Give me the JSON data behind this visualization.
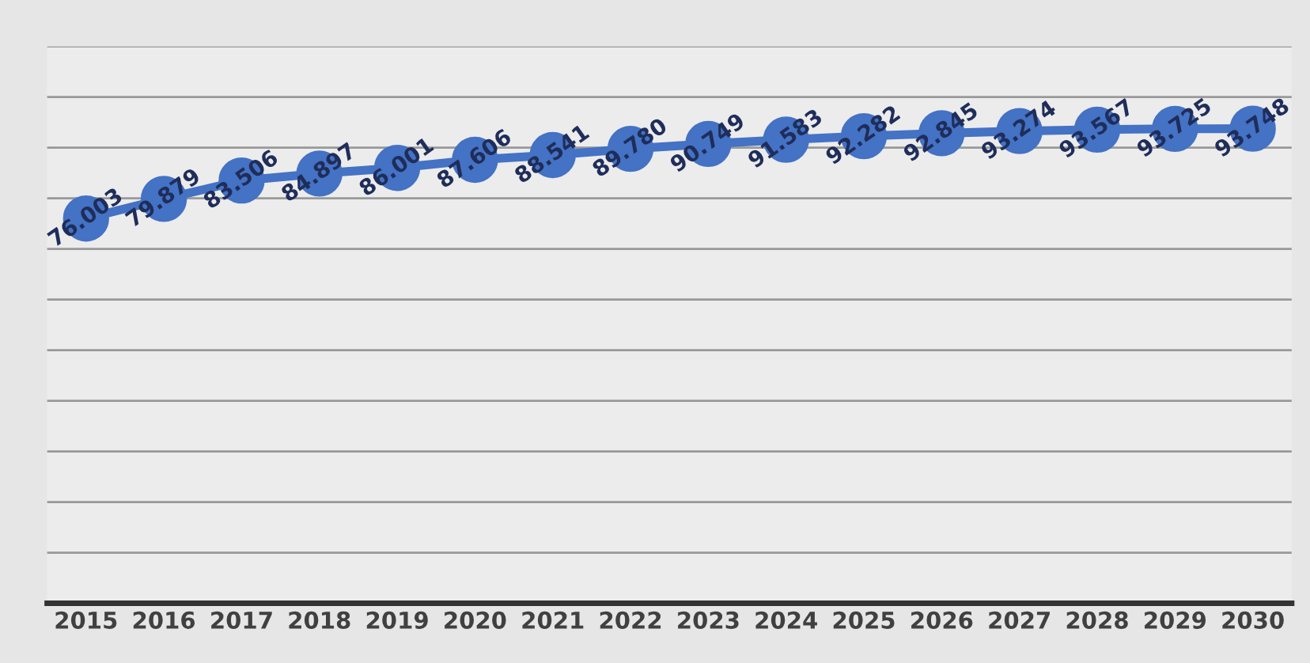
{
  "chart_data": {
    "type": "line",
    "categories": [
      "2015",
      "2016",
      "2017",
      "2018",
      "2019",
      "2020",
      "2021",
      "2022",
      "2023",
      "2024",
      "2025",
      "2026",
      "2027",
      "2028",
      "2029",
      "2030"
    ],
    "series": [
      {
        "color": "#4472c4",
        "values": [
          76.003,
          79.879,
          83.506,
          84.897,
          86.001,
          87.606,
          88.541,
          89.78,
          90.749,
          91.583,
          92.282,
          92.845,
          93.274,
          93.567,
          93.725,
          93.748
        ],
        "value_labels": [
          "76.003",
          "79.879",
          "83.506",
          "84.897",
          "86.001",
          "87.606",
          "88.541",
          "89.780",
          "90.749",
          "91.583",
          "92.282",
          "92.845",
          "93.274",
          "93.567",
          "93.725",
          "93.748"
        ]
      }
    ],
    "ylim": [
      0,
      110
    ],
    "yticks": [
      {
        "value": 0,
        "label": null
      },
      {
        "value": 10,
        "label": null
      },
      {
        "value": 20,
        "label": null
      },
      {
        "value": 30,
        "label": null
      },
      {
        "value": 40,
        "label": null
      },
      {
        "value": 50,
        "label": null
      },
      {
        "value": 60,
        "label": null
      },
      {
        "value": 70,
        "label": null
      },
      {
        "value": 80,
        "label": null
      },
      {
        "value": 90,
        "label": null
      },
      {
        "value": 100,
        "label": null
      },
      {
        "value": 110,
        "label": null
      }
    ],
    "grid": "y",
    "tick_labels": "x",
    "marker": "circle",
    "line_style": "solid",
    "legend": false
  }
}
